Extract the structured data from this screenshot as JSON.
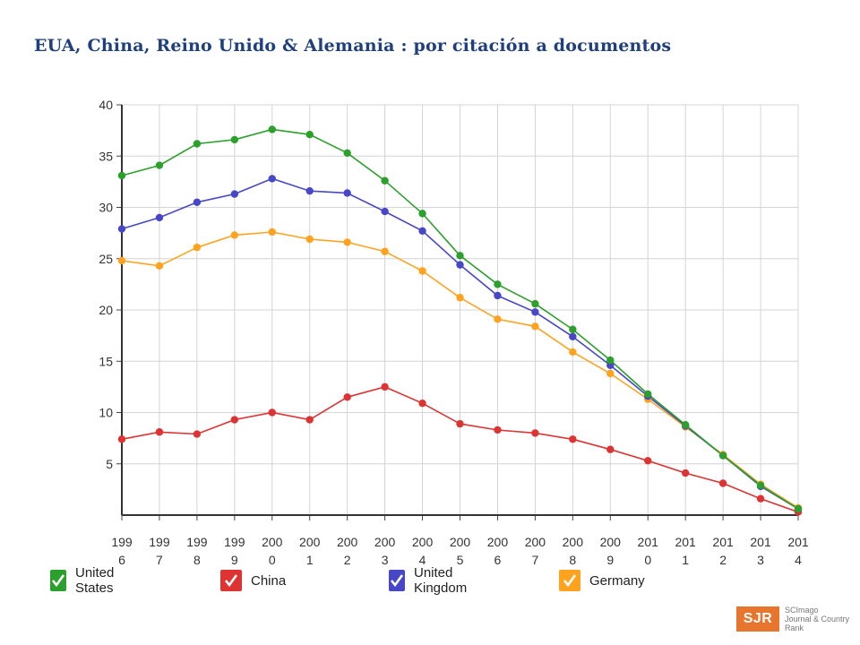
{
  "title": "EUA, China, Reino Unido & Alemania : por citación a documentos",
  "chart_data": {
    "type": "line",
    "categories": [
      "1996",
      "1997",
      "1998",
      "1999",
      "2000",
      "2001",
      "2002",
      "2003",
      "2004",
      "2005",
      "2006",
      "2007",
      "2008",
      "2009",
      "2010",
      "2011",
      "2012",
      "2013",
      "2014"
    ],
    "tick_labels": [
      [
        "199",
        "6"
      ],
      [
        "199",
        "7"
      ],
      [
        "199",
        "8"
      ],
      [
        "199",
        "9"
      ],
      [
        "200",
        "0"
      ],
      [
        "200",
        "1"
      ],
      [
        "200",
        "2"
      ],
      [
        "200",
        "3"
      ],
      [
        "200",
        "4"
      ],
      [
        "200",
        "5"
      ],
      [
        "200",
        "6"
      ],
      [
        "200",
        "7"
      ],
      [
        "200",
        "8"
      ],
      [
        "200",
        "9"
      ],
      [
        "201",
        "0"
      ],
      [
        "201",
        "1"
      ],
      [
        "201",
        "2"
      ],
      [
        "201",
        "3"
      ],
      [
        "201",
        "4"
      ]
    ],
    "ylim": [
      0,
      40
    ],
    "yticks": [
      5,
      10,
      15,
      20,
      25,
      30,
      35,
      40
    ],
    "grid": true,
    "legend_position": "bottom",
    "series": [
      {
        "name": "United States",
        "color": "#2ca02c",
        "values": [
          33.1,
          34.1,
          36.2,
          36.6,
          37.6,
          37.1,
          35.3,
          32.6,
          29.4,
          25.3,
          22.5,
          20.6,
          18.1,
          15.1,
          11.8,
          8.8,
          5.8,
          2.9,
          0.6
        ]
      },
      {
        "name": "United Kingdom",
        "color": "#4747c8",
        "values": [
          27.9,
          29.0,
          30.5,
          31.3,
          32.8,
          31.6,
          31.4,
          29.6,
          27.7,
          24.4,
          21.4,
          19.8,
          17.4,
          14.6,
          11.6,
          8.7,
          5.8,
          2.8,
          0.6
        ]
      },
      {
        "name": "Germany",
        "color": "#ffa21f",
        "values": [
          24.8,
          24.3,
          26.1,
          27.3,
          27.6,
          26.9,
          26.6,
          25.7,
          23.8,
          21.2,
          19.1,
          18.4,
          15.9,
          13.8,
          11.3,
          8.6,
          5.9,
          3.0,
          0.7
        ]
      },
      {
        "name": "China",
        "color": "#dd3333",
        "values": [
          7.4,
          8.1,
          7.9,
          9.3,
          10.0,
          9.3,
          11.5,
          12.5,
          10.9,
          8.9,
          8.3,
          8.0,
          7.4,
          6.4,
          5.3,
          4.1,
          3.1,
          1.6,
          0.3
        ]
      }
    ]
  },
  "legend": [
    {
      "label": "United States",
      "color": "#2ca02c"
    },
    {
      "label": "China",
      "color": "#dd3333"
    },
    {
      "label": "United Kingdom",
      "color": "#4747c8"
    },
    {
      "label": "Germany",
      "color": "#ffa21f"
    }
  ],
  "logo": {
    "badge": "SJR",
    "line1": "SCImago",
    "line2": "Journal & Country",
    "line3": "Rank"
  }
}
